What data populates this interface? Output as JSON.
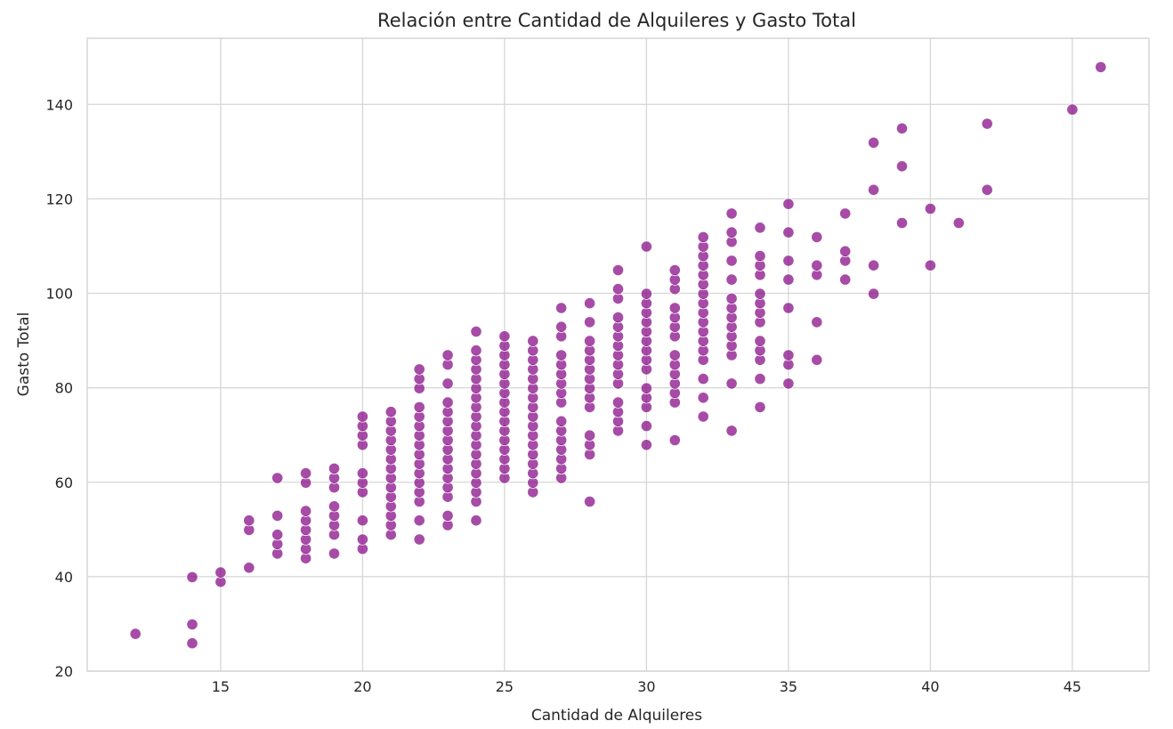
{
  "chart_data": {
    "type": "scatter",
    "title": "Relación entre Cantidad de Alquileres y Gasto Total",
    "xlabel": "Cantidad de Alquileres",
    "ylabel": "Gasto Total",
    "xlim": [
      10.3,
      47.7
    ],
    "ylim": [
      20,
      154
    ],
    "xticks": [
      15,
      20,
      25,
      30,
      35,
      40,
      45
    ],
    "yticks": [
      20,
      40,
      60,
      80,
      100,
      120,
      140
    ],
    "grid": true,
    "legend": "none",
    "colors": {
      "point": "#800080",
      "grid": "#d6d6d6",
      "background": "#ffffff"
    },
    "x_values_note_free": true,
    "points": [
      [
        12,
        27.9
      ],
      [
        14,
        25.9
      ],
      [
        14,
        29.9
      ],
      [
        14,
        39.9
      ],
      [
        15,
        38.9
      ],
      [
        15,
        40.9
      ],
      [
        16,
        41.9
      ],
      [
        16,
        49.9
      ],
      [
        16,
        51.9
      ],
      [
        17,
        44.9
      ],
      [
        17,
        46.9
      ],
      [
        17,
        48.9
      ],
      [
        17,
        52.9
      ],
      [
        17,
        60.9
      ],
      [
        18,
        43.9
      ],
      [
        18,
        45.9
      ],
      [
        18,
        47.9
      ],
      [
        18,
        49.9
      ],
      [
        18,
        51.9
      ],
      [
        18,
        53.9
      ],
      [
        18,
        59.9
      ],
      [
        18,
        61.9
      ],
      [
        19,
        44.9
      ],
      [
        19,
        48.9
      ],
      [
        19,
        50.9
      ],
      [
        19,
        52.9
      ],
      [
        19,
        54.9
      ],
      [
        19,
        58.9
      ],
      [
        19,
        60.9
      ],
      [
        19,
        62.9
      ],
      [
        20,
        45.9
      ],
      [
        20,
        47.9
      ],
      [
        20,
        51.9
      ],
      [
        20,
        57.9
      ],
      [
        20,
        59.9
      ],
      [
        20,
        61.9
      ],
      [
        20,
        67.9
      ],
      [
        20,
        69.9
      ],
      [
        20,
        71.9
      ],
      [
        20,
        73.9
      ],
      [
        21,
        48.9
      ],
      [
        21,
        50.9
      ],
      [
        21,
        52.9
      ],
      [
        21,
        54.9
      ],
      [
        21,
        56.9
      ],
      [
        21,
        58.9
      ],
      [
        21,
        60.9
      ],
      [
        21,
        62.9
      ],
      [
        21,
        64.9
      ],
      [
        21,
        66.9
      ],
      [
        21,
        68.9
      ],
      [
        21,
        70.9
      ],
      [
        21,
        72.9
      ],
      [
        21,
        74.9
      ],
      [
        22,
        47.9
      ],
      [
        22,
        51.9
      ],
      [
        22,
        55.9
      ],
      [
        22,
        57.9
      ],
      [
        22,
        59.9
      ],
      [
        22,
        61.9
      ],
      [
        22,
        63.9
      ],
      [
        22,
        65.9
      ],
      [
        22,
        67.9
      ],
      [
        22,
        69.9
      ],
      [
        22,
        71.9
      ],
      [
        22,
        73.9
      ],
      [
        22,
        75.9
      ],
      [
        22,
        79.9
      ],
      [
        22,
        81.9
      ],
      [
        22,
        83.9
      ],
      [
        23,
        50.9
      ],
      [
        23,
        52.9
      ],
      [
        23,
        56.9
      ],
      [
        23,
        58.9
      ],
      [
        23,
        60.9
      ],
      [
        23,
        62.9
      ],
      [
        23,
        64.9
      ],
      [
        23,
        66.9
      ],
      [
        23,
        68.9
      ],
      [
        23,
        70.9
      ],
      [
        23,
        72.9
      ],
      [
        23,
        74.9
      ],
      [
        23,
        76.9
      ],
      [
        23,
        80.9
      ],
      [
        23,
        84.9
      ],
      [
        23,
        86.9
      ],
      [
        24,
        51.9
      ],
      [
        24,
        55.9
      ],
      [
        24,
        57.9
      ],
      [
        24,
        59.9
      ],
      [
        24,
        61.9
      ],
      [
        24,
        63.9
      ],
      [
        24,
        65.9
      ],
      [
        24,
        67.9
      ],
      [
        24,
        69.9
      ],
      [
        24,
        71.9
      ],
      [
        24,
        73.9
      ],
      [
        24,
        75.9
      ],
      [
        24,
        77.9
      ],
      [
        24,
        79.9
      ],
      [
        24,
        81.9
      ],
      [
        24,
        83.9
      ],
      [
        24,
        85.9
      ],
      [
        24,
        87.9
      ],
      [
        24,
        91.9
      ],
      [
        25,
        60.9
      ],
      [
        25,
        62.9
      ],
      [
        25,
        64.9
      ],
      [
        25,
        66.9
      ],
      [
        25,
        68.9
      ],
      [
        25,
        70.9
      ],
      [
        25,
        72.9
      ],
      [
        25,
        74.9
      ],
      [
        25,
        76.9
      ],
      [
        25,
        78.9
      ],
      [
        25,
        80.9
      ],
      [
        25,
        82.9
      ],
      [
        25,
        84.9
      ],
      [
        25,
        86.9
      ],
      [
        25,
        88.9
      ],
      [
        25,
        90.9
      ],
      [
        26,
        57.9
      ],
      [
        26,
        59.9
      ],
      [
        26,
        61.9
      ],
      [
        26,
        63.9
      ],
      [
        26,
        65.9
      ],
      [
        26,
        67.9
      ],
      [
        26,
        69.9
      ],
      [
        26,
        71.9
      ],
      [
        26,
        73.9
      ],
      [
        26,
        75.9
      ],
      [
        26,
        77.9
      ],
      [
        26,
        79.9
      ],
      [
        26,
        81.9
      ],
      [
        26,
        83.9
      ],
      [
        26,
        85.9
      ],
      [
        26,
        87.9
      ],
      [
        26,
        89.9
      ],
      [
        27,
        60.9
      ],
      [
        27,
        62.9
      ],
      [
        27,
        64.9
      ],
      [
        27,
        66.9
      ],
      [
        27,
        68.9
      ],
      [
        27,
        70.9
      ],
      [
        27,
        72.9
      ],
      [
        27,
        76.9
      ],
      [
        27,
        78.9
      ],
      [
        27,
        80.9
      ],
      [
        27,
        82.9
      ],
      [
        27,
        84.9
      ],
      [
        27,
        86.9
      ],
      [
        27,
        90.9
      ],
      [
        27,
        92.9
      ],
      [
        27,
        96.9
      ],
      [
        28,
        55.9
      ],
      [
        28,
        65.9
      ],
      [
        28,
        67.9
      ],
      [
        28,
        69.9
      ],
      [
        28,
        75.9
      ],
      [
        28,
        77.9
      ],
      [
        28,
        79.9
      ],
      [
        28,
        81.9
      ],
      [
        28,
        83.9
      ],
      [
        28,
        85.9
      ],
      [
        28,
        87.9
      ],
      [
        28,
        89.9
      ],
      [
        28,
        93.9
      ],
      [
        28,
        97.9
      ],
      [
        29,
        70.9
      ],
      [
        29,
        72.9
      ],
      [
        29,
        74.9
      ],
      [
        29,
        76.9
      ],
      [
        29,
        80.9
      ],
      [
        29,
        82.9
      ],
      [
        29,
        84.9
      ],
      [
        29,
        86.9
      ],
      [
        29,
        88.9
      ],
      [
        29,
        90.9
      ],
      [
        29,
        92.9
      ],
      [
        29,
        94.9
      ],
      [
        29,
        98.9
      ],
      [
        29,
        100.9
      ],
      [
        29,
        104.9
      ],
      [
        30,
        67.9
      ],
      [
        30,
        71.9
      ],
      [
        30,
        75.9
      ],
      [
        30,
        77.9
      ],
      [
        30,
        79.9
      ],
      [
        30,
        83.9
      ],
      [
        30,
        85.9
      ],
      [
        30,
        87.9
      ],
      [
        30,
        89.9
      ],
      [
        30,
        91.9
      ],
      [
        30,
        93.9
      ],
      [
        30,
        95.9
      ],
      [
        30,
        97.9
      ],
      [
        30,
        99.9
      ],
      [
        30,
        109.9
      ],
      [
        31,
        68.9
      ],
      [
        31,
        76.9
      ],
      [
        31,
        78.9
      ],
      [
        31,
        80.9
      ],
      [
        31,
        82.9
      ],
      [
        31,
        84.9
      ],
      [
        31,
        86.9
      ],
      [
        31,
        90.9
      ],
      [
        31,
        92.9
      ],
      [
        31,
        94.9
      ],
      [
        31,
        96.9
      ],
      [
        31,
        100.9
      ],
      [
        31,
        102.9
      ],
      [
        31,
        104.9
      ],
      [
        32,
        73.9
      ],
      [
        32,
        77.9
      ],
      [
        32,
        81.9
      ],
      [
        32,
        85.9
      ],
      [
        32,
        87.9
      ],
      [
        32,
        89.9
      ],
      [
        32,
        91.9
      ],
      [
        32,
        93.9
      ],
      [
        32,
        95.9
      ],
      [
        32,
        97.9
      ],
      [
        32,
        99.9
      ],
      [
        32,
        101.9
      ],
      [
        32,
        103.9
      ],
      [
        32,
        105.9
      ],
      [
        32,
        107.9
      ],
      [
        32,
        109.9
      ],
      [
        32,
        111.9
      ],
      [
        33,
        70.9
      ],
      [
        33,
        80.9
      ],
      [
        33,
        86.9
      ],
      [
        33,
        88.9
      ],
      [
        33,
        90.9
      ],
      [
        33,
        92.9
      ],
      [
        33,
        94.9
      ],
      [
        33,
        96.9
      ],
      [
        33,
        98.9
      ],
      [
        33,
        102.9
      ],
      [
        33,
        106.9
      ],
      [
        33,
        110.9
      ],
      [
        33,
        112.9
      ],
      [
        33,
        116.9
      ],
      [
        34,
        75.9
      ],
      [
        34,
        81.9
      ],
      [
        34,
        85.9
      ],
      [
        34,
        87.9
      ],
      [
        34,
        89.9
      ],
      [
        34,
        93.9
      ],
      [
        34,
        95.9
      ],
      [
        34,
        97.9
      ],
      [
        34,
        99.9
      ],
      [
        34,
        103.9
      ],
      [
        34,
        105.9
      ],
      [
        34,
        107.9
      ],
      [
        34,
        113.9
      ],
      [
        35,
        80.9
      ],
      [
        35,
        84.9
      ],
      [
        35,
        86.9
      ],
      [
        35,
        96.9
      ],
      [
        35,
        102.9
      ],
      [
        35,
        106.9
      ],
      [
        35,
        112.9
      ],
      [
        35,
        118.9
      ],
      [
        36,
        85.9
      ],
      [
        36,
        93.9
      ],
      [
        36,
        103.9
      ],
      [
        36,
        105.9
      ],
      [
        36,
        111.9
      ],
      [
        37,
        102.9
      ],
      [
        37,
        106.9
      ],
      [
        37,
        108.9
      ],
      [
        37,
        116.9
      ],
      [
        38,
        99.9
      ],
      [
        38,
        105.9
      ],
      [
        38,
        121.9
      ],
      [
        38,
        131.9
      ],
      [
        39,
        114.9
      ],
      [
        39,
        126.9
      ],
      [
        39,
        134.9
      ],
      [
        40,
        105.9
      ],
      [
        40,
        117.9
      ],
      [
        41,
        114.9
      ],
      [
        42,
        121.9
      ],
      [
        42,
        135.9
      ],
      [
        45,
        138.9
      ],
      [
        46,
        147.9
      ]
    ]
  }
}
